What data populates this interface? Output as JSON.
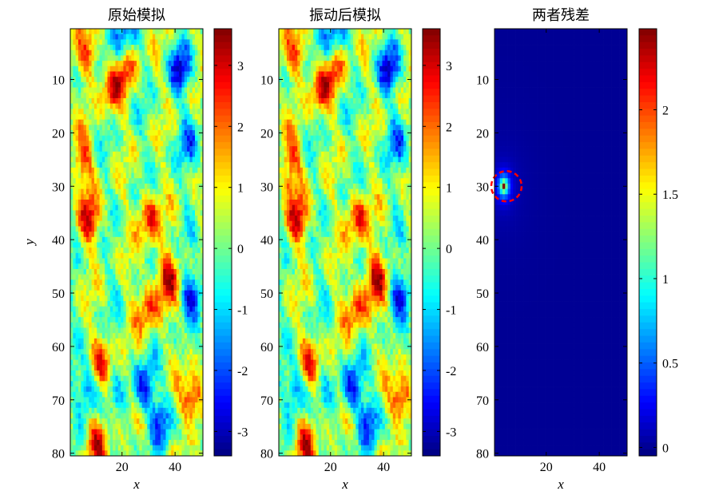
{
  "chart_data": [
    {
      "type": "heatmap",
      "title": "原始模拟",
      "xlabel": "x",
      "ylabel": "y",
      "xlim": [
        0.5,
        50.5
      ],
      "ylim": [
        0.5,
        80.5
      ],
      "x_ticks": [
        "20",
        "40"
      ],
      "x_tick_values": [
        20,
        40
      ],
      "y_ticks": [
        "10",
        "20",
        "30",
        "40",
        "50",
        "60",
        "70",
        "80"
      ],
      "y_tick_values": [
        10,
        20,
        30,
        40,
        50,
        60,
        70,
        80
      ],
      "y_axis_reversed": true,
      "grid_size": [
        50,
        80
      ],
      "colormap": "jet",
      "colorbar": {
        "range": [
          -3.4,
          3.6
        ],
        "ticks": [
          "3",
          "2",
          "1",
          "0",
          "-1",
          "-2",
          "-3"
        ],
        "tick_values": [
          3,
          2,
          1,
          0,
          -1,
          -2,
          -3
        ]
      },
      "hotspots": [
        {
          "x": 8,
          "y": 5,
          "value": 2.4
        },
        {
          "x": 16,
          "y": 12,
          "value": 2.6
        },
        {
          "x": 22,
          "y": 8,
          "value": 2.2
        },
        {
          "x": 5,
          "y": 25,
          "value": 2.5
        },
        {
          "x": 8,
          "y": 36,
          "value": 3.0
        },
        {
          "x": 30,
          "y": 36,
          "value": 3.0
        },
        {
          "x": 37,
          "y": 47,
          "value": 3.1
        },
        {
          "x": 30,
          "y": 53,
          "value": 2.6
        },
        {
          "x": 12,
          "y": 63,
          "value": 2.6
        },
        {
          "x": 47,
          "y": 70,
          "value": 3.5
        },
        {
          "x": 10,
          "y": 78,
          "value": 2.8
        }
      ],
      "coldspots": [
        {
          "x": 20,
          "y": 2,
          "value": -2.5
        },
        {
          "x": 42,
          "y": 8,
          "value": -2.8
        },
        {
          "x": 46,
          "y": 22,
          "value": -1.8
        },
        {
          "x": 46,
          "y": 50,
          "value": -2.4
        },
        {
          "x": 8,
          "y": 68,
          "value": -2.6
        },
        {
          "x": 28,
          "y": 68,
          "value": -2.8
        },
        {
          "x": 35,
          "y": 74,
          "value": -2.2
        }
      ]
    },
    {
      "type": "heatmap",
      "title": "振动后模拟",
      "xlabel": "x",
      "ylabel": "",
      "xlim": [
        0.5,
        50.5
      ],
      "ylim": [
        0.5,
        80.5
      ],
      "x_ticks": [
        "20",
        "40"
      ],
      "x_tick_values": [
        20,
        40
      ],
      "y_ticks": [
        "10",
        "20",
        "30",
        "40",
        "50",
        "60",
        "70",
        "80"
      ],
      "y_tick_values": [
        10,
        20,
        30,
        40,
        50,
        60,
        70,
        80
      ],
      "y_axis_reversed": true,
      "grid_size": [
        50,
        80
      ],
      "colormap": "jet",
      "colorbar": {
        "range": [
          -3.4,
          3.6
        ],
        "ticks": [
          "3",
          "2",
          "1",
          "0",
          "-1",
          "-2",
          "-3"
        ],
        "tick_values": [
          3,
          2,
          1,
          0,
          -1,
          -2,
          -3
        ]
      },
      "note_same_as_original_except_near": {
        "x": 4,
        "y": 30,
        "value": 2.4
      }
    },
    {
      "type": "heatmap",
      "title": "两者残差",
      "xlabel": "x",
      "ylabel": "",
      "xlim": [
        0.5,
        50.5
      ],
      "ylim": [
        0.5,
        80.5
      ],
      "x_ticks": [
        "20",
        "40"
      ],
      "x_tick_values": [
        20,
        40
      ],
      "y_ticks": [
        "10",
        "20",
        "30",
        "40",
        "50",
        "60",
        "70",
        "80"
      ],
      "y_tick_values": [
        10,
        20,
        30,
        40,
        50,
        60,
        70,
        80
      ],
      "y_axis_reversed": true,
      "grid_size": [
        50,
        80
      ],
      "colormap": "jet",
      "colorbar": {
        "range": [
          -0.05,
          2.48
        ],
        "ticks": [
          "2",
          "1.5",
          "1",
          "0.5",
          "0"
        ],
        "tick_values": [
          2,
          1.5,
          1,
          0.5,
          0
        ]
      },
      "peak": {
        "x": 4,
        "y": 30,
        "value": 2.45
      },
      "highlight_circle": {
        "x": 5,
        "y": 30,
        "color": "#ff0000",
        "style": "dashed"
      }
    }
  ]
}
